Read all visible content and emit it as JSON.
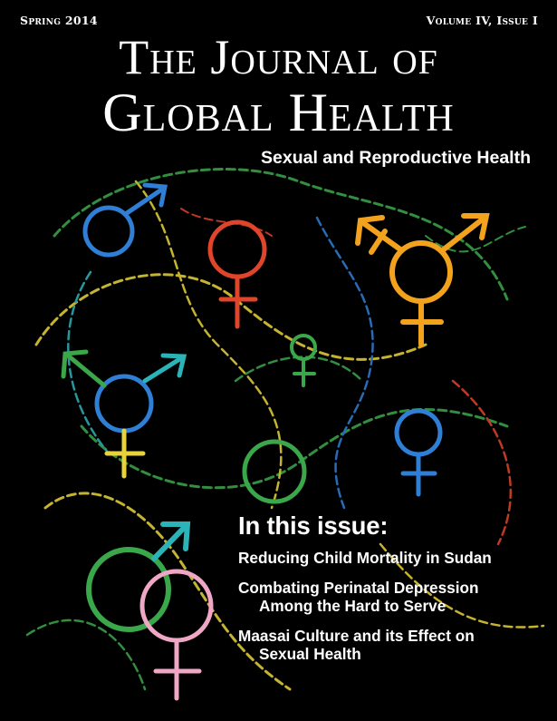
{
  "header": {
    "issue_date": "Spring 2014",
    "volume": "Volume IV, Issue I"
  },
  "masthead": {
    "line1": "The Journal of",
    "line2": "Global Health"
  },
  "subtitle": "Sexual and Reproductive Health",
  "in_this_issue": {
    "heading": "In this issue:",
    "articles": [
      {
        "line1": "Reducing Child Mortality in Sudan",
        "line2": ""
      },
      {
        "line1": "Combating Perinatal Depression",
        "line2": "Among the Hard to Serve"
      },
      {
        "line1": "Maasai Culture and its Effect on",
        "line2": "Sexual Health"
      }
    ]
  },
  "artwork": {
    "description_icons": [
      "male-symbol",
      "female-symbol",
      "transgender-symbol"
    ],
    "colors": {
      "blue": "#2f7fd6",
      "orange": "#f2a21c",
      "red": "#e0452b",
      "green": "#3aa84a",
      "yellow": "#e8d43a",
      "pink": "#f0a7c6",
      "teal": "#2bb3b8"
    }
  }
}
